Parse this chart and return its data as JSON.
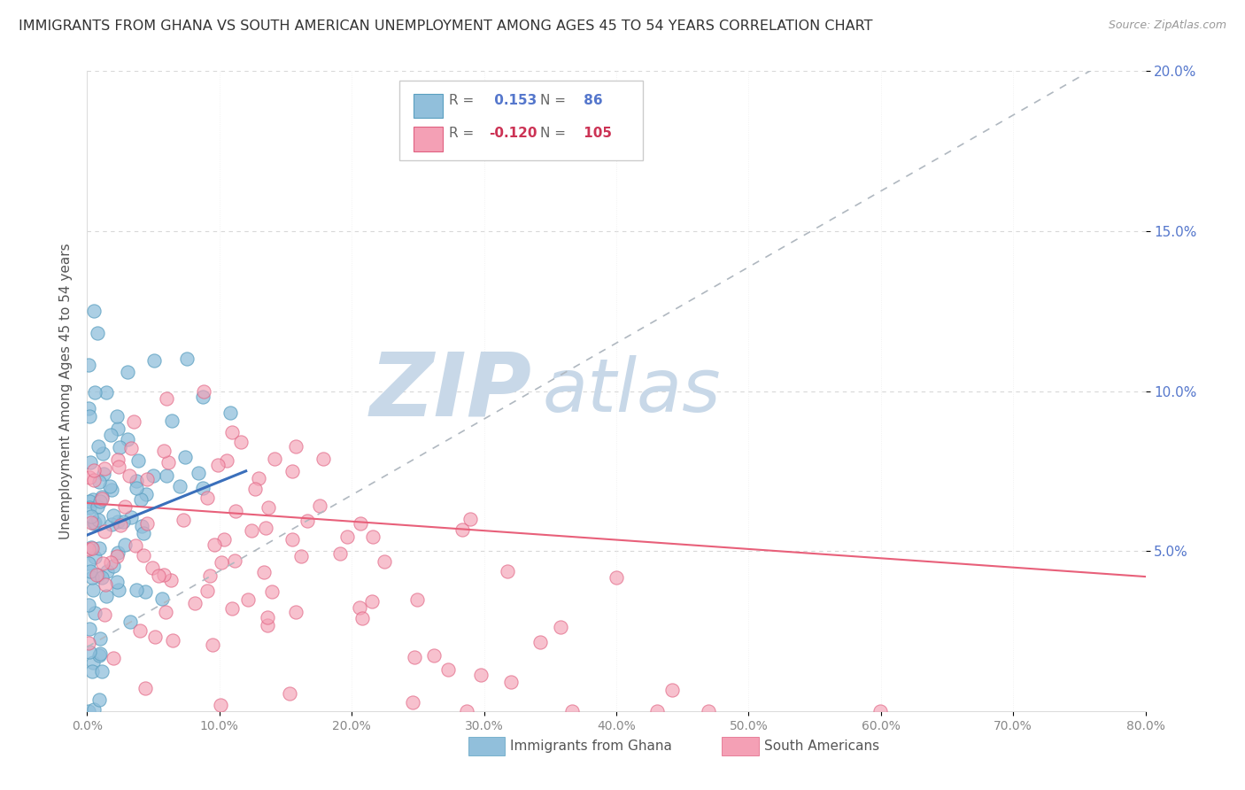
{
  "title": "IMMIGRANTS FROM GHANA VS SOUTH AMERICAN UNEMPLOYMENT AMONG AGES 45 TO 54 YEARS CORRELATION CHART",
  "source": "Source: ZipAtlas.com",
  "ylabel": "Unemployment Among Ages 45 to 54 years",
  "xlim": [
    0,
    0.8
  ],
  "ylim": [
    0,
    0.2
  ],
  "yticks": [
    0.05,
    0.1,
    0.15,
    0.2
  ],
  "ytick_labels": [
    "5.0%",
    "10.0%",
    "15.0%",
    "20.0%"
  ],
  "xticks": [
    0.0,
    0.1,
    0.2,
    0.3,
    0.4,
    0.5,
    0.6,
    0.7,
    0.8
  ],
  "xtick_labels": [
    "0.0%",
    "10.0%",
    "20.0%",
    "30.0%",
    "40.0%",
    "50.0%",
    "60.0%",
    "70.0%",
    "80.0%"
  ],
  "ghana_R": 0.153,
  "ghana_N": 86,
  "sa_R": -0.12,
  "sa_N": 105,
  "ghana_color": "#91bfdb",
  "ghana_edge_color": "#5a9fc0",
  "sa_color": "#f4a0b5",
  "sa_edge_color": "#e06080",
  "ghana_trend_color": "#b0b8c0",
  "sa_trend_color": "#e8607a",
  "blue_line_color": "#3a6fbb",
  "watermark_zip": "ZIP",
  "watermark_atlas": "atlas",
  "watermark_color": "#c8d8e8",
  "legend_label_ghana": "Immigrants from Ghana",
  "legend_label_sa": "South Americans",
  "background_color": "#ffffff",
  "grid_color": "#d8d8d8",
  "title_color": "#333333",
  "title_fontsize": 11.5,
  "ytick_color": "#5577cc",
  "xtick_color": "#888888",
  "ylabel_color": "#555555",
  "seed": 42
}
